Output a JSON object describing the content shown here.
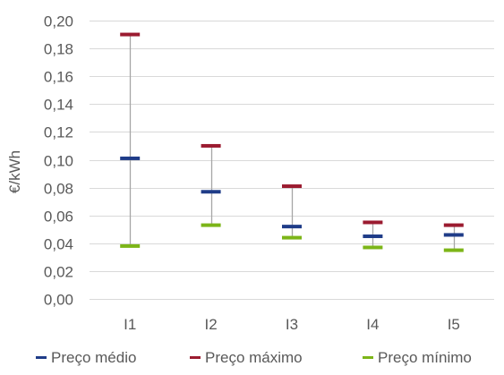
{
  "chart_data": {
    "type": "high-low-range",
    "categories": [
      "I1",
      "I2",
      "I3",
      "I4",
      "I5"
    ],
    "series": [
      {
        "name": "Preço médio",
        "values": [
          0.101,
          0.077,
          0.052,
          0.045,
          0.046
        ],
        "color": "#1F3C88"
      },
      {
        "name": "Preço máximo",
        "values": [
          0.19,
          0.11,
          0.081,
          0.055,
          0.053
        ],
        "color": "#9B1B30"
      },
      {
        "name": "Preço mínimo",
        "values": [
          0.038,
          0.053,
          0.044,
          0.037,
          0.035
        ],
        "color": "#7CB518"
      }
    ],
    "ylabel": "€/kWh",
    "ylim": [
      0,
      0.2
    ],
    "yticks": [
      "0,00",
      "0,02",
      "0,04",
      "0,06",
      "0,08",
      "0,10",
      "0,12",
      "0,14",
      "0,16",
      "0,18",
      "0,20"
    ],
    "grid": true,
    "legend": "bottom",
    "range_line_color": "#A6A6A6",
    "grid_color": "#D9D9D9",
    "text_color": "#595959"
  }
}
